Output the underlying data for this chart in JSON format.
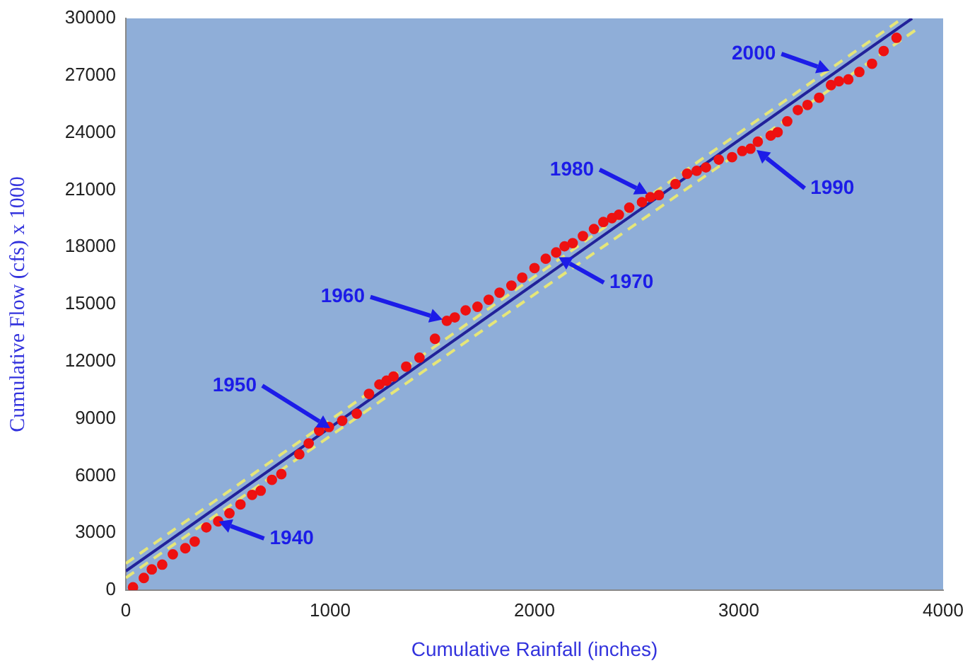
{
  "chart_data": {
    "type": "scatter",
    "xlabel": "Cumulative Rainfall (inches)",
    "ylabel": "Cumulative Flow (cfs) x 1000",
    "xlim": [
      0,
      4000
    ],
    "xticks": [
      0,
      1000,
      2000,
      3000,
      4000
    ],
    "ylim": [
      0,
      30000
    ],
    "yticks": [
      0,
      3000,
      6000,
      9000,
      12000,
      15000,
      18000,
      21000,
      24000,
      27000,
      30000
    ],
    "grid": false,
    "legend": false,
    "marker": "circle",
    "series": [
      {
        "type": "line",
        "color": "#e6e678",
        "line_style": "dashed",
        "marker": "none",
        "x": [
          0,
          3800
        ],
        "values": [
          1400,
          30000
        ]
      },
      {
        "type": "line",
        "color": "#e6e678",
        "line_style": "dashed",
        "marker": "none",
        "x": [
          0,
          3880
        ],
        "values": [
          650,
          29500
        ]
      },
      {
        "type": "line",
        "color": "#22229a",
        "line_style": "solid",
        "marker": "none",
        "x": [
          0,
          3848
        ],
        "values": [
          1000,
          30000
        ]
      },
      {
        "color": "#ee1111",
        "x": [
          35,
          88,
          127,
          178,
          230,
          291,
          337,
          394,
          452,
          507,
          561,
          618,
          660,
          715,
          761,
          849,
          895,
          946,
          994,
          1059,
          1130,
          1190,
          1241,
          1276,
          1310,
          1372,
          1437,
          1513,
          1571,
          1610,
          1663,
          1721,
          1776,
          1829,
          1887,
          1940,
          2000,
          2055,
          2106,
          2147,
          2187,
          2237,
          2291,
          2337,
          2379,
          2413,
          2464,
          2526,
          2567,
          2609,
          2690,
          2747,
          2794,
          2839,
          2902,
          2967,
          3017,
          3057,
          3093,
          3156,
          3190,
          3237,
          3289,
          3336,
          3393,
          3451,
          3490,
          3536,
          3590,
          3652,
          3709,
          3772
        ],
        "values": [
          150,
          640,
          1090,
          1340,
          1880,
          2200,
          2550,
          3290,
          3610,
          4030,
          4500,
          5000,
          5220,
          5790,
          6090,
          7130,
          7700,
          8370,
          8560,
          8890,
          9260,
          10300,
          10790,
          10990,
          11210,
          11730,
          12200,
          13190,
          14130,
          14310,
          14680,
          14870,
          15240,
          15610,
          15980,
          16400,
          16900,
          17390,
          17720,
          18040,
          18210,
          18580,
          18950,
          19320,
          19520,
          19700,
          20070,
          20360,
          20620,
          20730,
          21310,
          21850,
          22000,
          22180,
          22590,
          22720,
          23040,
          23160,
          23530,
          23850,
          24030,
          24600,
          25190,
          25460,
          25840,
          26500,
          26700,
          26800,
          27190,
          27620,
          28290,
          28980
        ]
      }
    ],
    "annotations": [
      {
        "text": "1940",
        "x": 455,
        "y": 3600
      },
      {
        "text": "1950",
        "x": 1000,
        "y": 8500
      },
      {
        "text": "1960",
        "x": 1550,
        "y": 14200
      },
      {
        "text": "1970",
        "x": 2118,
        "y": 17470
      },
      {
        "text": "1980",
        "x": 2554,
        "y": 20800
      },
      {
        "text": "1990",
        "x": 3087,
        "y": 23090
      },
      {
        "text": "2000",
        "x": 3444,
        "y": 27250
      }
    ]
  }
}
